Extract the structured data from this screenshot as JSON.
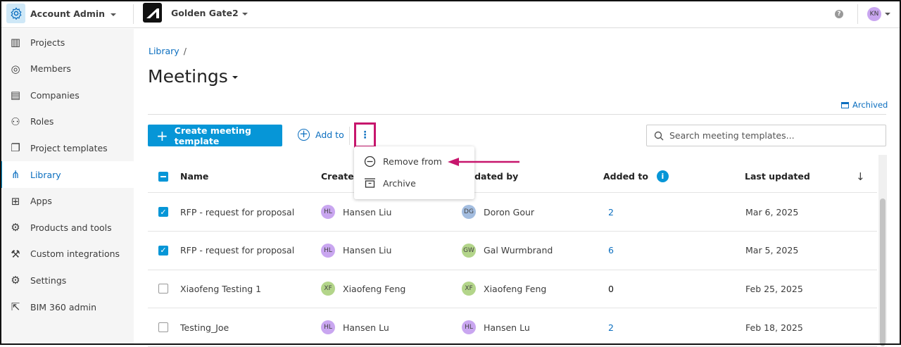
{
  "topbar": {
    "account": "Account Admin",
    "project": "Golden Gate2",
    "user_initials": "KN",
    "help_icon": "question-circle-icon"
  },
  "sidebar": {
    "items": [
      {
        "label": "Projects",
        "icon": "building-icon"
      },
      {
        "label": "Members",
        "icon": "person-icon"
      },
      {
        "label": "Companies",
        "icon": "company-icon"
      },
      {
        "label": "Roles",
        "icon": "role-icon"
      },
      {
        "label": "Project templates",
        "icon": "template-icon"
      },
      {
        "label": "Library",
        "icon": "library-icon",
        "active": true
      },
      {
        "label": "Apps",
        "icon": "apps-grid-icon"
      },
      {
        "label": "Products and tools",
        "icon": "products-icon"
      },
      {
        "label": "Custom integrations",
        "icon": "tools-icon"
      },
      {
        "label": "Settings",
        "icon": "gear-icon"
      },
      {
        "label": "BIM 360 admin",
        "icon": "external-link-icon"
      }
    ]
  },
  "breadcrumb": {
    "root": "Library",
    "sep": "/"
  },
  "page": {
    "title": "Meetings",
    "archived": "Archived"
  },
  "toolbar": {
    "create": "Create meeting template",
    "add_to": "Add to",
    "more": "⋮",
    "search_placeholder": "Search meeting templates..."
  },
  "menu": {
    "items": [
      {
        "label": "Remove from",
        "icon": "minus-circle-icon"
      },
      {
        "label": "Archive",
        "icon": "archive-icon"
      }
    ]
  },
  "colors": {
    "accent": "#0696d7",
    "highlight": "#c7166d"
  },
  "table": {
    "headers": {
      "name": "Name",
      "created_by": "Created by",
      "updated_by": "Updated by",
      "added_to": "Added to",
      "last_updated": "Last updated"
    },
    "rows": [
      {
        "checked": true,
        "name": "RFP - request for proposal",
        "created": {
          "initials": "HL",
          "name": "Hansen Liu",
          "color": "#c9a6f0"
        },
        "updated": {
          "initials": "DG",
          "name": "Doron Gour",
          "color": "#a3bde0"
        },
        "added_to": "2",
        "date": "Mar 6, 2025"
      },
      {
        "checked": true,
        "name": "RFP - request for proposal",
        "created": {
          "initials": "HL",
          "name": "Hansen Liu",
          "color": "#c9a6f0"
        },
        "updated": {
          "initials": "GW",
          "name": "Gal Wurmbrand",
          "color": "#b3d58a"
        },
        "added_to": "6",
        "date": "Mar 5, 2025"
      },
      {
        "checked": false,
        "name": "Xiaofeng Testing 1",
        "created": {
          "initials": "XF",
          "name": "Xiaofeng Feng",
          "color": "#b3d58a"
        },
        "updated": {
          "initials": "XF",
          "name": "Xiaofeng Feng",
          "color": "#b3d58a"
        },
        "added_to": "0",
        "date": "Feb 25, 2025"
      },
      {
        "checked": false,
        "name": "Testing_Joe",
        "created": {
          "initials": "HL",
          "name": "Hansen Lu",
          "color": "#c9a6f0"
        },
        "updated": {
          "initials": "HL",
          "name": "Hansen Lu",
          "color": "#c9a6f0"
        },
        "added_to": "2",
        "date": "Feb 18, 2025"
      }
    ]
  }
}
